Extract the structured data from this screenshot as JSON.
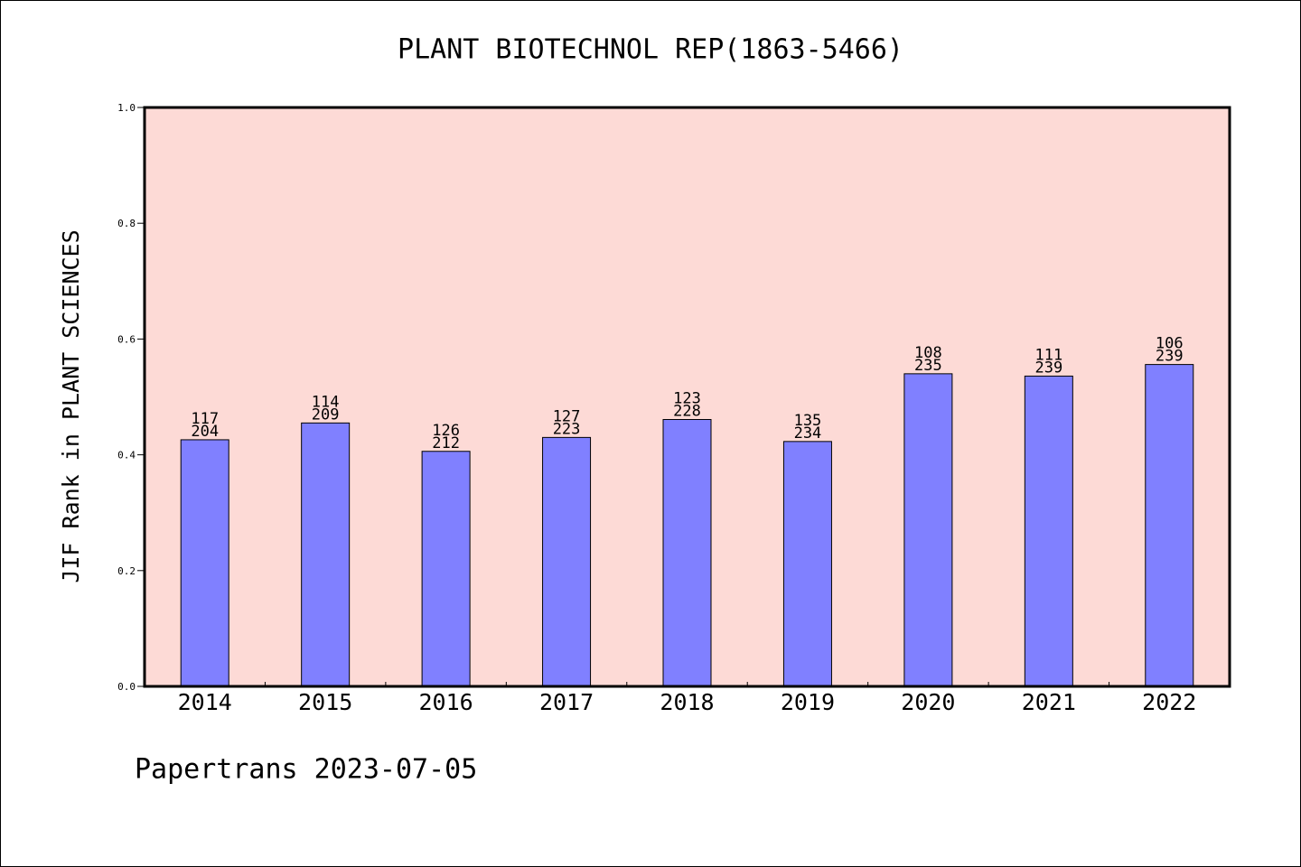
{
  "chart_data": {
    "type": "bar",
    "title": "PLANT BIOTECHNOL REP(1863-5466)",
    "xlabel": "",
    "ylabel": "JIF Rank in PLANT SCIENCES",
    "ylim": [
      0.0,
      1.0
    ],
    "yticks": [
      "0.0",
      "0.2",
      "0.4",
      "0.6",
      "0.8",
      "1.0"
    ],
    "categories": [
      "2014",
      "2015",
      "2016",
      "2017",
      "2018",
      "2019",
      "2020",
      "2021",
      "2022"
    ],
    "series": [
      {
        "values": [
          0.426,
          0.455,
          0.406,
          0.43,
          0.461,
          0.423,
          0.54,
          0.536,
          0.556
        ]
      }
    ],
    "bar_labels": [
      {
        "rank": "117",
        "total": "204"
      },
      {
        "rank": "114",
        "total": "209"
      },
      {
        "rank": "126",
        "total": "212"
      },
      {
        "rank": "127",
        "total": "223"
      },
      {
        "rank": "123",
        "total": "228"
      },
      {
        "rank": "135",
        "total": "234"
      },
      {
        "rank": "108",
        "total": "235"
      },
      {
        "rank": "111",
        "total": "239"
      },
      {
        "rank": "106",
        "total": "239"
      }
    ],
    "grid": false,
    "legend": "none"
  },
  "footer": "Papertrans 2023-07-05",
  "colors": {
    "plot_background": "#fddad6",
    "bar_fill": "#8080ff",
    "bar_edge": "#000000",
    "axis": "#000000",
    "text": "#000000"
  }
}
